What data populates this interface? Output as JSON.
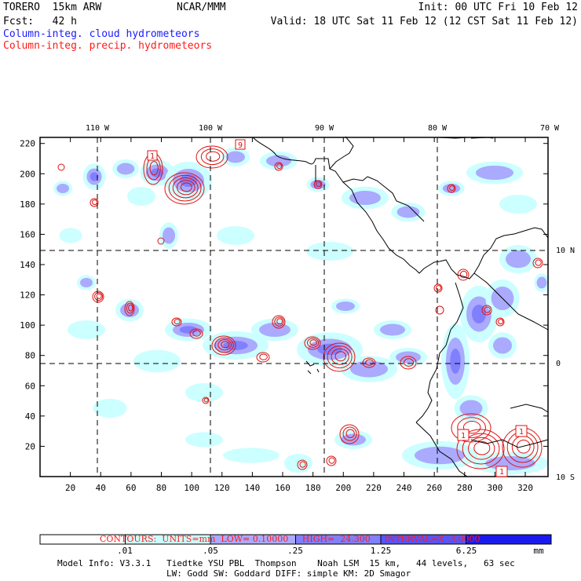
{
  "header": {
    "model": "TORERO  15km ARW",
    "org": "NCAR/MMM",
    "init": "Init: 00 UTC Fri 10 Feb 12",
    "fcst": "Fcst:   42 h",
    "valid": "Valid: 18 UTC Sat 11 Feb 12 (12 CST Sat 11 Feb 12)",
    "legend_cloud": "Column-integ. cloud hydrometeors",
    "legend_precip": "Column-integ. precip. hydrometeors"
  },
  "map": {
    "top_lon_labels": [
      "110 W",
      "100 W",
      "90 W",
      "80 W",
      "70 W"
    ],
    "right_lat_labels": [
      "10 N",
      "0",
      "10 S"
    ],
    "x_ticks": [
      "20",
      "40",
      "60",
      "80",
      "100",
      "120",
      "140",
      "160",
      "180",
      "200",
      "220",
      "240",
      "260",
      "280",
      "300",
      "320"
    ],
    "y_ticks": [
      "220",
      "200",
      "180",
      "160",
      "140",
      "120",
      "100",
      "80",
      "60",
      "40",
      "20"
    ],
    "contour_labels": [
      "9",
      "1",
      "1",
      "1",
      "1"
    ]
  },
  "contour_info": {
    "contours": "CONTOURS:",
    "units": "UNITS=mm",
    "low": "LOW= 0.10000",
    "high": "HIGH=  24.300",
    "interval": "INTERVAL=X  3.0000"
  },
  "colorbar": {
    "labels": [
      ".01",
      ".05",
      ".25",
      "1.25",
      "6.25"
    ],
    "unit": "mm",
    "colors": [
      "#ffffff",
      "#ccffff",
      "#aaaaff",
      "#8080ff",
      "#5555ff",
      "#1a1aee"
    ]
  },
  "model_info": {
    "line1": "Model Info: V3.3.1   Tiedtke YSU PBL  Thompson    Noah LSM  15 km,   44 levels,   63 sec",
    "line2": "LW: Godd SW: Goddard DIFF: simple KM: 2D Smagor"
  }
}
